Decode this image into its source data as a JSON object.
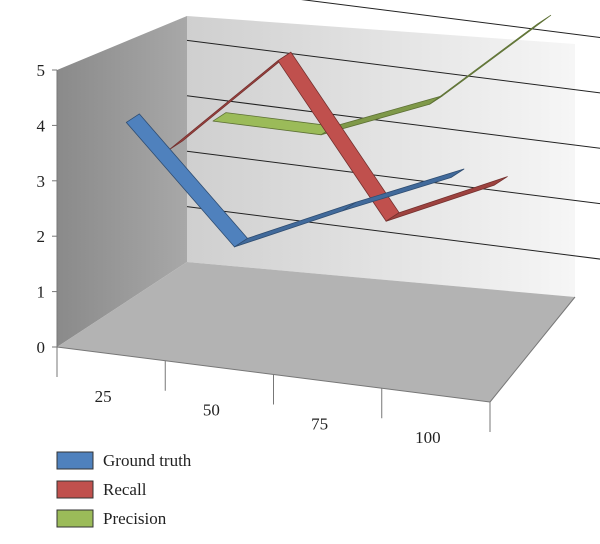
{
  "chart_data": {
    "type": "line",
    "title": "",
    "xlabel": "",
    "ylabel": "",
    "categories": [
      "25",
      "50",
      "75",
      "100"
    ],
    "y_ticks": [
      "0",
      "1",
      "2",
      "3",
      "4",
      "5"
    ],
    "ylim": [
      0,
      5
    ],
    "grid": true,
    "legend_placement": "bottom-left",
    "series": [
      {
        "name": "Ground truth",
        "values": [
          4.0,
          2.0,
          2.9,
          3.75
        ],
        "color": "#4f81bd"
      },
      {
        "name": "Recall",
        "values": [
          3.0,
          4.85,
          2.2,
          3.1
        ],
        "color": "#c0504d"
      },
      {
        "name": "Precision",
        "values": [
          3.0,
          3.0,
          3.8,
          5.5
        ],
        "color": "#9bbb59"
      }
    ]
  }
}
